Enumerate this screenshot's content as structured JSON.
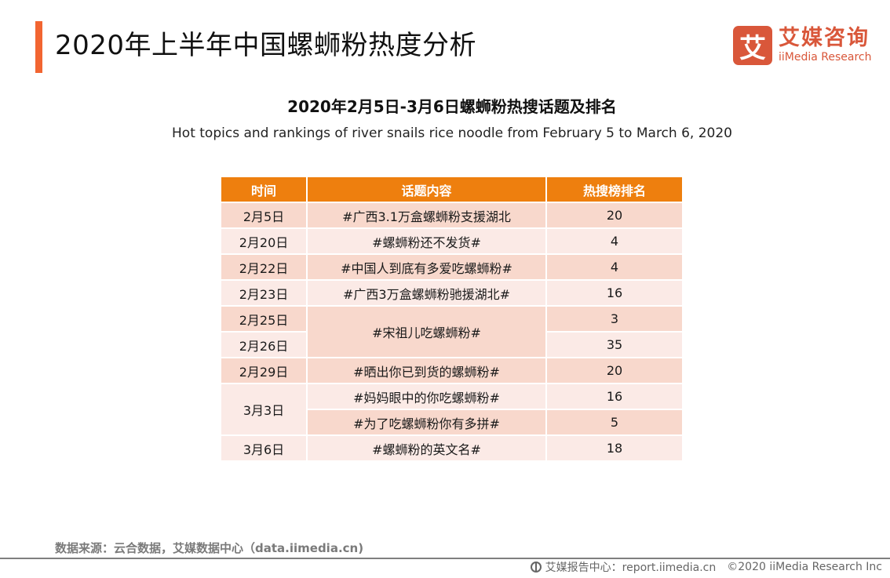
{
  "header": {
    "title": "2020年上半年中国螺蛳粉热度分析",
    "accent_color": "#F26531"
  },
  "logo": {
    "mark": "艾",
    "name_cn": "艾媒咨询",
    "name_en": "iiMedia Research",
    "color": "#D9573A"
  },
  "chart": {
    "title_cn": "2020年2月5日-3月6日螺蛳粉热搜话题及排名",
    "title_en": "Hot topics and rankings of river snails rice noodle from February 5 to March 6, 2020"
  },
  "table": {
    "header_color": "#EE7F0E",
    "columns": [
      "时间",
      "话题内容",
      "热搜榜排名"
    ],
    "rows": [
      {
        "date": "2月5日",
        "topic": "#广西3.1万盒螺蛳粉支援湖北",
        "rank": "20"
      },
      {
        "date": "2月20日",
        "topic": "#螺蛳粉还不发货#",
        "rank": "4"
      },
      {
        "date": "2月22日",
        "topic": "#中国人到底有多爱吃螺蛳粉#",
        "rank": "4"
      },
      {
        "date": "2月23日",
        "topic": "#广西3万盒螺蛳粉驰援湖北#",
        "rank": "16"
      },
      {
        "date": "2月25日",
        "topic": "#宋祖儿吃螺蛳粉#",
        "rank": "3"
      },
      {
        "date": "2月26日",
        "topic": "#宋祖儿吃螺蛳粉#",
        "rank": "35"
      },
      {
        "date": "2月29日",
        "topic": "#晒出你已到货的螺蛳粉#",
        "rank": "20"
      },
      {
        "date": "3月3日",
        "topic": "#妈妈眼中的你吃螺蛳粉#",
        "rank": "16"
      },
      {
        "date": "3月3日",
        "topic": "#为了吃螺蛳粉你有多拼#",
        "rank": "5"
      },
      {
        "date": "3月6日",
        "topic": "#螺蛳粉的英文名#",
        "rank": "18"
      }
    ]
  },
  "footer": {
    "source": "数据来源：云合数据，艾媒数据中心（data.iimedia.cn)",
    "report_center": "艾媒报告中心：report.iimedia.cn",
    "copyright": "©2020  iiMedia Research  Inc"
  }
}
